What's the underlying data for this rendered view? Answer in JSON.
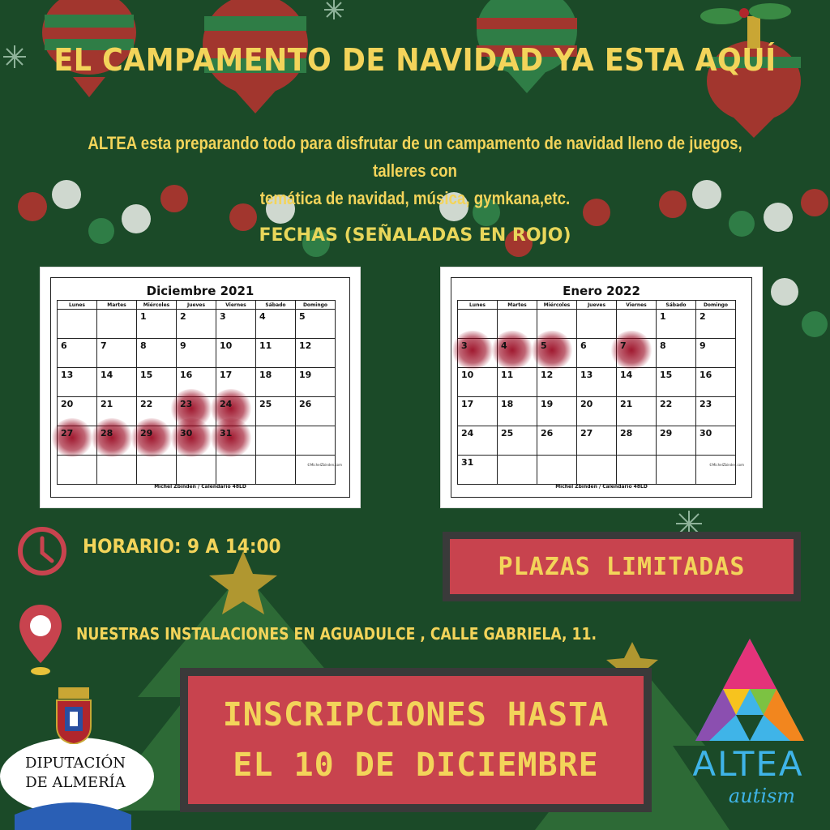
{
  "title": "EL CAMPAMENTO DE NAVIDAD YA ESTA AQUÍ",
  "intro_line1": "ALTEA esta preparando todo para disfrutar de un campamento de navidad  lleno de juegos, talleres con",
  "intro_line2": "temática de navidad, música, gymkana,etc.",
  "fechas_label": "FECHAS  (SEÑALADAS EN ROJO)",
  "weekdays": [
    "Lunes",
    "Martes",
    "Miércoles",
    "Jueves",
    "Viernes",
    "Sábado",
    "Domingo"
  ],
  "calendars": [
    {
      "title": "Diciembre 2021",
      "credit": "Michel Zbinden / Calendario 48LD",
      "site": "©MichelZbinden.com",
      "weeks": [
        [
          "",
          "",
          "1",
          "2",
          "3",
          "4",
          "5"
        ],
        [
          "6",
          "7",
          "8",
          "9",
          "10",
          "11",
          "12"
        ],
        [
          "13",
          "14",
          "15",
          "16",
          "17",
          "18",
          "19"
        ],
        [
          "20",
          "21",
          "22",
          "23",
          "24",
          "25",
          "26"
        ],
        [
          "27",
          "28",
          "29",
          "30",
          "31",
          "",
          ""
        ],
        [
          "",
          "",
          "",
          "",
          "",
          "",
          ""
        ]
      ],
      "highlighted": [
        "23",
        "24",
        "27",
        "28",
        "29",
        "30",
        "31"
      ]
    },
    {
      "title": "Enero 2022",
      "credit": "Michel Zbinden / Calendario 48LD",
      "site": "©MichelZbinden.com",
      "weeks": [
        [
          "",
          "",
          "",
          "",
          "",
          "1",
          "2"
        ],
        [
          "3",
          "4",
          "5",
          "6",
          "7",
          "8",
          "9"
        ],
        [
          "10",
          "11",
          "12",
          "13",
          "14",
          "15",
          "16"
        ],
        [
          "17",
          "18",
          "19",
          "20",
          "21",
          "22",
          "23"
        ],
        [
          "24",
          "25",
          "26",
          "27",
          "28",
          "29",
          "30"
        ],
        [
          "31",
          "",
          "",
          "",
          "",
          "",
          ""
        ]
      ],
      "highlighted": [
        "3",
        "4",
        "5",
        "7"
      ]
    }
  ],
  "horario": "HORARIO: 9 A 14:00",
  "plazas": "PLAZAS LIMITADAS",
  "address": "NUESTRAS INSTALACIONES EN AGUADULCE , CALLE GABRIELA, 11.",
  "inscripciones_line1": "INSCRIPCIONES HASTA",
  "inscripciones_line2": "EL 10 DE DICIEMBRE",
  "diputacion_line1": "DIPUTACIÓN",
  "diputacion_line2": "DE ALMERÍA",
  "altea_word": "ALTEA",
  "altea_sub": "autism",
  "colors": {
    "background": "#1b4a28",
    "accent_yellow": "#f3d45a",
    "box_red": "#c8434e",
    "box_border": "#3a3a3a",
    "highlight_red": "#960019",
    "altea_blue": "#3fb4e8"
  },
  "icons": [
    "clock-icon",
    "location-pin-icon",
    "ornament-icon",
    "snowflake-icon",
    "christmas-tree-icon",
    "star-icon",
    "coat-of-arms-icon",
    "altea-triangle-logo"
  ]
}
